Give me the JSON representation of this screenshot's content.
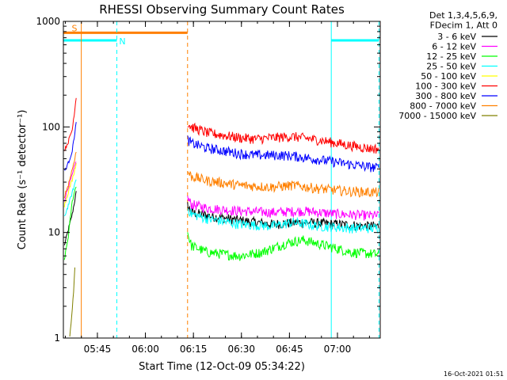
{
  "title": "RHESSI Observing Summary Count Rates",
  "xlabel": "Start Time (12-Oct-09 05:34:22)",
  "ylabel": "Count Rate (s⁻¹ detector⁻¹)",
  "footer_timestamp": "16-Oct-2021 01:51",
  "legend": {
    "header_lines": [
      "Det 1,3,4,5,6,9,",
      "FDecim 1, Att 0"
    ]
  },
  "chart_data": {
    "type": "line",
    "title": "RHESSI Observing Summary Count Rates",
    "xlabel": "Start Time (12-Oct-09 05:34:22)",
    "ylabel": "Count Rate (s⁻¹ detector⁻¹)",
    "x_unit": "minutes after 05:34:22",
    "xlim": [
      0,
      99
    ],
    "ylim": [
      1,
      1000
    ],
    "yscale": "log",
    "grid": false,
    "legend_position": "right",
    "x_ticks": [
      {
        "value": 10.63,
        "label": "05:45"
      },
      {
        "value": 25.63,
        "label": "06:00"
      },
      {
        "value": 40.63,
        "label": "06:15"
      },
      {
        "value": 55.63,
        "label": "06:30"
      },
      {
        "value": 70.63,
        "label": "06:45"
      },
      {
        "value": 85.63,
        "label": "07:00"
      }
    ],
    "y_ticks": [
      {
        "value": 1,
        "label": "1"
      },
      {
        "value": 10,
        "label": "10"
      },
      {
        "value": 100,
        "label": "100"
      },
      {
        "value": 1000,
        "label": "1000"
      }
    ],
    "series": [
      {
        "name": "3 - 6 keV",
        "color": "#000000",
        "segments": [
          [
            [
              0.3,
              7.5
            ],
            [
              1.5,
              10.5
            ],
            [
              2.8,
              15
            ],
            [
              4.0,
              24
            ]
          ],
          [
            [
              38.8,
              18
            ],
            [
              40,
              15.5
            ],
            [
              45,
              14.5
            ],
            [
              55,
              13
            ],
            [
              65,
              12
            ],
            [
              75,
              12.5
            ],
            [
              85,
              12
            ],
            [
              95,
              11.5
            ],
            [
              98.5,
              11.5
            ]
          ]
        ]
      },
      {
        "name": "6 - 12 keV",
        "color": "#ff00ff",
        "segments": [
          [
            [
              0.3,
              20
            ],
            [
              1.5,
              27
            ],
            [
              2.8,
              35
            ],
            [
              4.0,
              48
            ]
          ],
          [
            [
              38.8,
              21
            ],
            [
              40,
              18.5
            ],
            [
              45,
              17
            ],
            [
              55,
              16
            ],
            [
              65,
              15.5
            ],
            [
              75,
              16
            ],
            [
              85,
              15
            ],
            [
              95,
              14.5
            ],
            [
              98.5,
              14.5
            ]
          ]
        ]
      },
      {
        "name": "12 - 25 keV",
        "color": "#00ff00",
        "segments": [
          [
            [
              0.3,
              5.5
            ],
            [
              1.5,
              9
            ],
            [
              2.8,
              20
            ],
            [
              4.0,
              28
            ]
          ],
          [
            [
              38.8,
              10
            ],
            [
              40,
              7.5
            ],
            [
              45,
              6.5
            ],
            [
              55,
              6
            ],
            [
              62,
              6.5
            ],
            [
              70,
              8
            ],
            [
              75,
              8.5
            ],
            [
              82,
              7.5
            ],
            [
              90,
              6.5
            ],
            [
              98.5,
              6.2
            ]
          ]
        ]
      },
      {
        "name": "25 - 50 keV",
        "color": "#00ffff",
        "segments": [
          [
            [
              0.3,
              14
            ],
            [
              1.5,
              18
            ],
            [
              2.8,
              24
            ],
            [
              4.0,
              32
            ]
          ],
          [
            [
              38.8,
              17
            ],
            [
              40,
              15
            ],
            [
              45,
              13.5
            ],
            [
              55,
              12
            ],
            [
              65,
              11.5
            ],
            [
              72,
              12.5
            ],
            [
              80,
              11.5
            ],
            [
              90,
              11
            ],
            [
              98.5,
              11
            ]
          ]
        ]
      },
      {
        "name": "50 - 100 keV",
        "color": "#ffff00",
        "segments": [
          [
            [
              0.3,
              18
            ],
            [
              1.5,
              24
            ],
            [
              2.8,
              32
            ],
            [
              4.0,
              45
            ]
          ]
        ]
      },
      {
        "name": "100 - 300 keV",
        "color": "#ff0000",
        "segments": [
          [
            [
              0.3,
              60
            ],
            [
              1.5,
              72
            ],
            [
              2.8,
              95
            ],
            [
              4.0,
              190
            ]
          ],
          [
            [
              38.8,
              108
            ],
            [
              40,
              100
            ],
            [
              45,
              88
            ],
            [
              55,
              79
            ],
            [
              60,
              77
            ],
            [
              68,
              80
            ],
            [
              72,
              81
            ],
            [
              80,
              75
            ],
            [
              88,
              68
            ],
            [
              95,
              63
            ],
            [
              98.5,
              62
            ]
          ]
        ]
      },
      {
        "name": "300 - 800 keV",
        "color": "#0000ff",
        "segments": [
          [
            [
              0.3,
              38
            ],
            [
              1.5,
              45
            ],
            [
              2.8,
              60
            ],
            [
              4.0,
              110
            ]
          ],
          [
            [
              38.8,
              76
            ],
            [
              40,
              70
            ],
            [
              45,
              63
            ],
            [
              55,
              56
            ],
            [
              60,
              54
            ],
            [
              68,
              54
            ],
            [
              72,
              53
            ],
            [
              80,
              49
            ],
            [
              88,
              45
            ],
            [
              95,
              42
            ],
            [
              98.5,
              41
            ]
          ]
        ]
      },
      {
        "name": "800 - 7000 keV",
        "color": "#ff8000",
        "segments": [
          [
            [
              0.3,
              22
            ],
            [
              1.5,
              28
            ],
            [
              2.8,
              40
            ],
            [
              4.0,
              58
            ]
          ],
          [
            [
              38.8,
              38
            ],
            [
              40,
              34
            ],
            [
              45,
              31
            ],
            [
              55,
              28
            ],
            [
              65,
              27
            ],
            [
              72,
              28
            ],
            [
              80,
              26
            ],
            [
              90,
              24.5
            ],
            [
              98.5,
              24
            ]
          ]
        ]
      },
      {
        "name": "7000 - 15000 keV",
        "color": "#808000",
        "segments": [
          [
            [
              2.0,
              1.0
            ],
            [
              2.6,
              1.6
            ],
            [
              3.2,
              2.8
            ],
            [
              3.6,
              4.5
            ]
          ]
        ]
      }
    ],
    "annotations": [
      {
        "type": "bar",
        "label": "S",
        "color": "#ff8000",
        "x_start": 0,
        "x_end": 38.8,
        "y": 780
      },
      {
        "type": "bar",
        "label": "N",
        "color": "#00ffff",
        "x_start": 0,
        "x_end": 16.7,
        "y": 660
      },
      {
        "type": "bar",
        "label": "",
        "color": "#00ffff",
        "x_start": 83.7,
        "x_end": 98.6,
        "y": 660
      },
      {
        "type": "vline",
        "color": "#ff8000",
        "style": "solid",
        "x": 5.6
      },
      {
        "type": "vline",
        "color": "#ff8000",
        "style": "dashed",
        "x": 38.8
      },
      {
        "type": "vline",
        "color": "#00ffff",
        "style": "solid",
        "x": 0
      },
      {
        "type": "vline",
        "color": "#00ffff",
        "style": "dashed",
        "x": 16.7
      },
      {
        "type": "vline",
        "color": "#00ffff",
        "style": "solid",
        "x": 83.7
      },
      {
        "type": "vline",
        "color": "#00ffff",
        "style": "dashed",
        "x": 98.6
      }
    ]
  }
}
